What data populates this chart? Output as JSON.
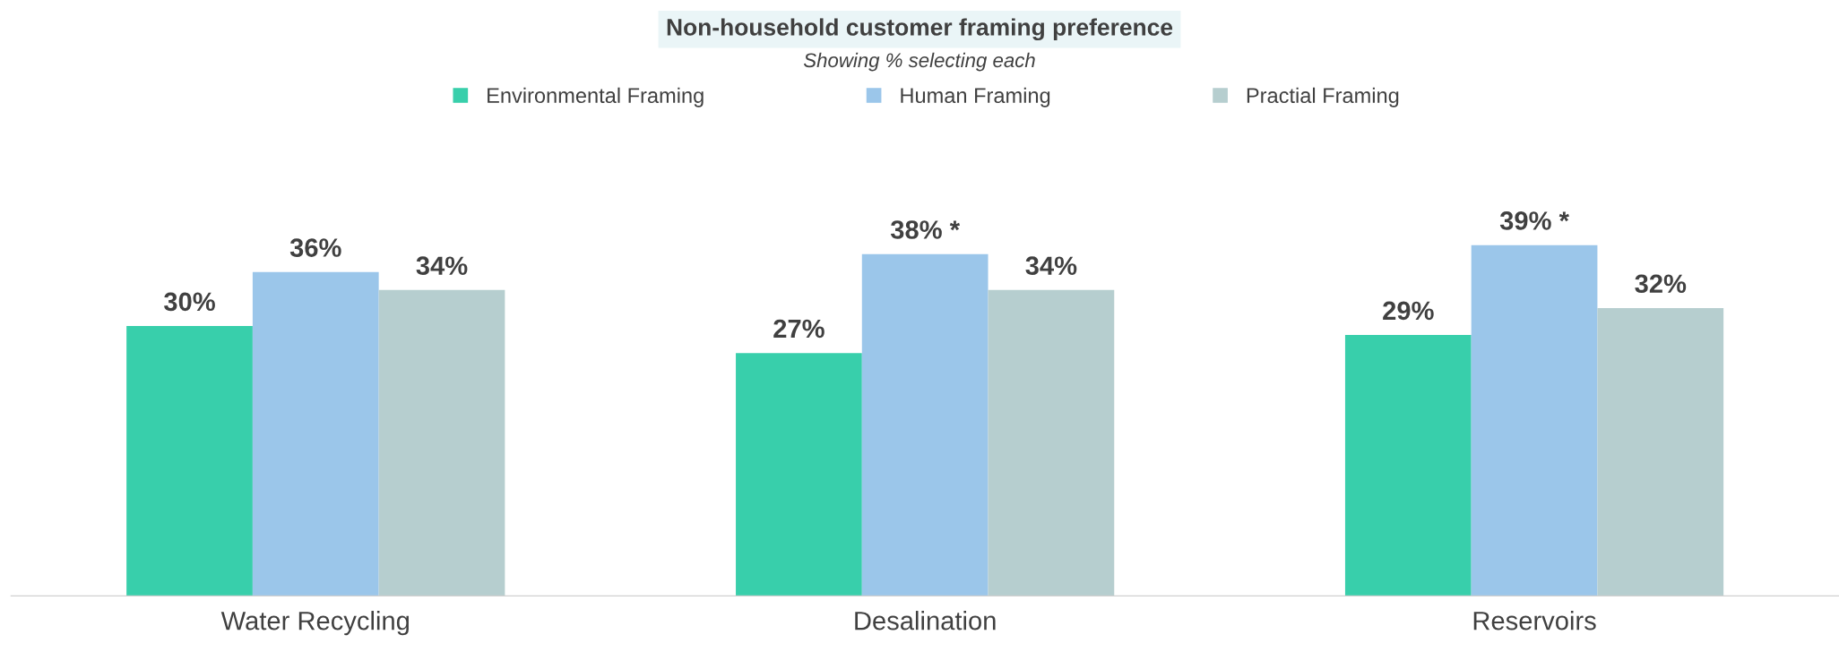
{
  "chart_data": {
    "type": "bar",
    "title": "Non-household customer framing preference",
    "subtitle": "Showing % selecting each",
    "categories": [
      "Water Recycling",
      "Desalination",
      "Reservoirs"
    ],
    "series": [
      {
        "name": "Environmental Framing",
        "color": "#38cfab",
        "values": [
          30,
          27,
          29
        ],
        "value_labels": [
          "30%",
          "27%",
          "29%"
        ]
      },
      {
        "name": "Human Framing",
        "color": "#9bc6ea",
        "values": [
          36,
          38,
          39
        ],
        "value_labels": [
          "36%",
          "38% *",
          "39% *"
        ]
      },
      {
        "name": "Practial Framing",
        "color": "#b6cecf",
        "values": [
          34,
          34,
          32
        ],
        "value_labels": [
          "34%",
          "34%",
          "32%"
        ]
      }
    ],
    "tick_labels": "x",
    "grid": false,
    "legend": "top"
  }
}
